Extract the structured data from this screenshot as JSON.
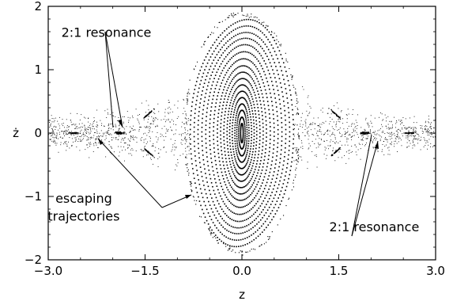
{
  "chart_data": {
    "type": "scatter",
    "xlabel": "z",
    "ylabel": "ż",
    "xlim": [
      -3.0,
      3.0
    ],
    "ylim": [
      -2.0,
      2.0
    ],
    "x_ticks": [
      -3.0,
      -1.5,
      0.0,
      1.5,
      3.0
    ],
    "x_tick_labels": [
      "−3.0",
      "−1.5",
      "0.0",
      "1.5",
      "3.0"
    ],
    "y_ticks": [
      -2,
      -1,
      0,
      1,
      2
    ],
    "y_tick_labels": [
      "−2",
      "−1",
      "0",
      "1",
      "2"
    ],
    "grid": false,
    "invariant_curves": {
      "center": [
        0.0,
        0.0
      ],
      "x_amplitudes": [
        0.02,
        0.05,
        0.08,
        0.11,
        0.15,
        0.19,
        0.23,
        0.28,
        0.33,
        0.38,
        0.44,
        0.5,
        0.56,
        0.62,
        0.68,
        0.74,
        0.8
      ],
      "y_amplitudes": [
        0.15,
        0.25,
        0.36,
        0.46,
        0.56,
        0.66,
        0.76,
        0.86,
        0.96,
        1.06,
        1.17,
        1.28,
        1.39,
        1.49,
        1.58,
        1.68,
        1.78
      ]
    },
    "separatrix": {
      "x_extent": 0.88,
      "y_extent": 1.88
    },
    "resonance_islands": [
      [
        -1.9,
        0.0
      ],
      [
        1.9,
        0.0
      ]
    ],
    "secondary_islands": [
      [
        -1.45,
        0.3
      ],
      [
        -1.45,
        -0.3
      ],
      [
        1.45,
        0.3
      ],
      [
        1.45,
        -0.3
      ],
      [
        -2.6,
        0.0
      ],
      [
        2.6,
        0.0
      ]
    ],
    "annotations": [
      {
        "text": "2:1 resonance",
        "x": -2.1,
        "y": 1.52,
        "arrow_to": [
          -1.9,
          0.05
        ]
      },
      {
        "text": "escaping",
        "x": -2.45,
        "y": -1.1
      },
      {
        "text": "trajectories",
        "x": -2.45,
        "y": -1.38
      },
      {
        "text": "2:1 resonance",
        "x": 2.05,
        "y": -1.55,
        "arrow_to": [
          1.85,
          -0.02
        ]
      }
    ]
  }
}
